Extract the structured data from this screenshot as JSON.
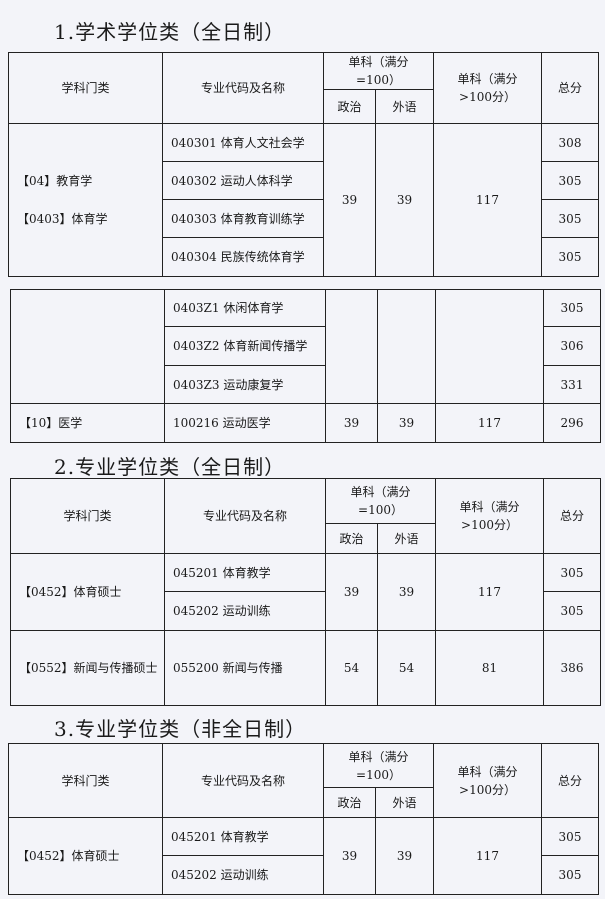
{
  "header": {
    "category": "学科门类",
    "major": "专业代码及名称",
    "single100": "单科（满分=100）",
    "politics": "政治",
    "language": "外语",
    "single_over100": "单科（满分>100分）",
    "total": "总分"
  },
  "section1": {
    "title": "1.学术学位类（全日制）",
    "category_a1": "【04】教育学",
    "category_a2": "【0403】体育学",
    "rows": [
      {
        "major": "040301 体育人文社会学",
        "total": "308"
      },
      {
        "major": "040302 运动人体科学",
        "total": "305"
      },
      {
        "major": "040303 体育教育训练学",
        "total": "305"
      },
      {
        "major": "040304 民族传统体育学",
        "total": "305"
      },
      {
        "major": "0403Z1 休闲体育学",
        "total": "305"
      },
      {
        "major": "0403Z2 体育新闻传播学",
        "total": "306"
      },
      {
        "major": "0403Z3 运动康复学",
        "total": "331"
      }
    ],
    "politics": "39",
    "language": "39",
    "single": "117",
    "med": {
      "category": "【10】医学",
      "major": "100216 运动医学",
      "politics": "39",
      "language": "39",
      "single": "117",
      "total": "296"
    }
  },
  "section2": {
    "title": "2.专业学位类（全日制）",
    "pe": {
      "category": "【0452】体育硕士",
      "majors": [
        "045201 体育教学",
        "045202 运动训练"
      ],
      "totals": [
        "305",
        "305"
      ],
      "politics": "39",
      "language": "39",
      "single": "117"
    },
    "jc": {
      "category": "【0552】新闻与传播硕士",
      "major": "055200 新闻与传播",
      "politics": "54",
      "language": "54",
      "single": "81",
      "total": "386"
    }
  },
  "section3": {
    "title": "3.专业学位类（非全日制）",
    "pe": {
      "category": "【0452】体育硕士",
      "majors": [
        "045201 体育教学",
        "045202 运动训练"
      ],
      "totals": [
        "305",
        "305"
      ],
      "politics": "39",
      "language": "39",
      "single": "117"
    }
  }
}
